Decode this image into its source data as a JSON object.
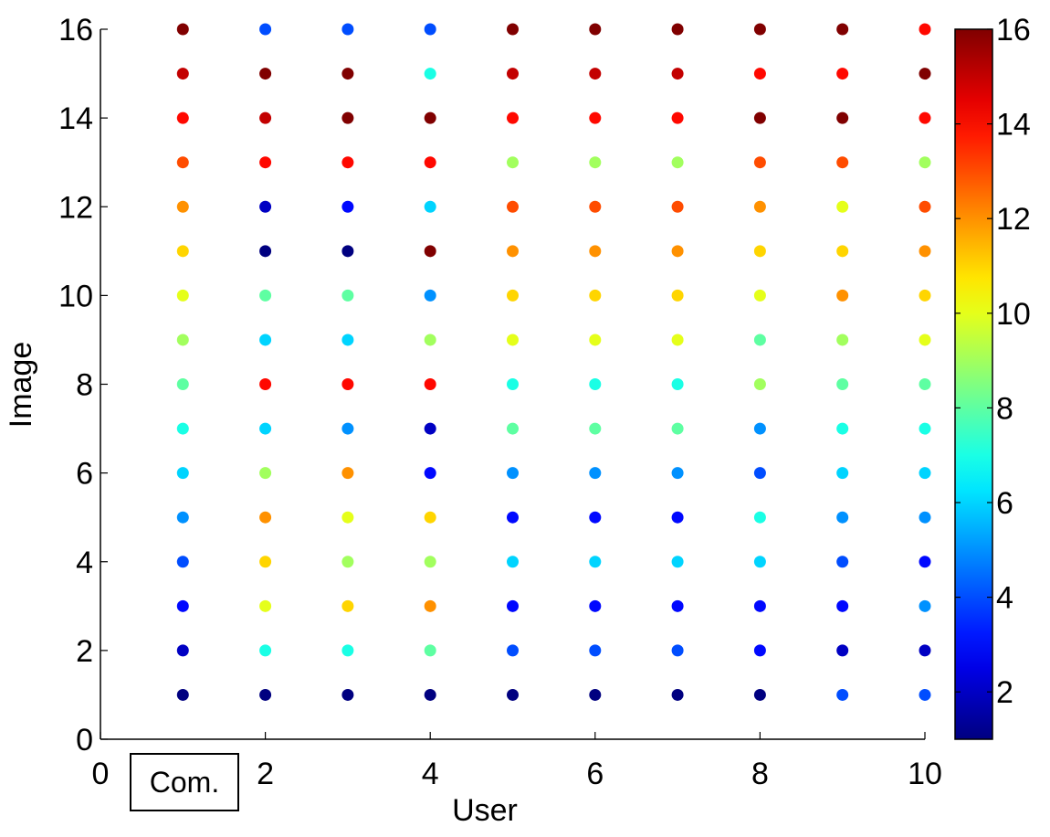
{
  "chart_data": {
    "type": "scatter",
    "title": "",
    "xlabel": "User",
    "ylabel": "Image",
    "xlim": [
      0,
      10
    ],
    "ylim": [
      0,
      16
    ],
    "x_ticks": [
      "0",
      "2",
      "4",
      "6",
      "8",
      "10"
    ],
    "y_ticks": [
      "0",
      "2",
      "4",
      "6",
      "8",
      "10",
      "12",
      "14",
      "16"
    ],
    "colormap": "jet",
    "color_range": [
      1,
      16
    ],
    "colorbar_ticks": [
      "2",
      "4",
      "6",
      "8",
      "10",
      "12",
      "14",
      "16"
    ],
    "grid": false,
    "annotation": "Com.",
    "users": [
      1,
      2,
      3,
      4,
      5,
      6,
      7,
      8,
      9,
      10
    ],
    "images": [
      1,
      2,
      3,
      4,
      5,
      6,
      7,
      8,
      9,
      10,
      11,
      12,
      13,
      14,
      15,
      16
    ],
    "color_values_by_user": [
      [
        1,
        2,
        3,
        4,
        5,
        6,
        7,
        8,
        9,
        10,
        11,
        12,
        13,
        14,
        15,
        16
      ],
      [
        1,
        7,
        10,
        11,
        12,
        9,
        6,
        14,
        6,
        8,
        1,
        2,
        14,
        15,
        16,
        4
      ],
      [
        1,
        7,
        11,
        9,
        10,
        12,
        5,
        14,
        6,
        8,
        1,
        3,
        14,
        16,
        16,
        4
      ],
      [
        1,
        8,
        12,
        9,
        11,
        3,
        2,
        14,
        9,
        5,
        16,
        6,
        14,
        16,
        7,
        4
      ],
      [
        1,
        4,
        3,
        6,
        3,
        5,
        8,
        7,
        10,
        11,
        12,
        13,
        9,
        14,
        15,
        16
      ],
      [
        1,
        4,
        3,
        6,
        3,
        5,
        8,
        7,
        10,
        11,
        12,
        13,
        9,
        14,
        15,
        16
      ],
      [
        1,
        4,
        3,
        6,
        3,
        5,
        8,
        7,
        10,
        11,
        12,
        13,
        9,
        14,
        15,
        16
      ],
      [
        1,
        3,
        3,
        6,
        7,
        4,
        5,
        9,
        8,
        10,
        11,
        12,
        13,
        16,
        14,
        16
      ],
      [
        4,
        2,
        3,
        4,
        5,
        6,
        7,
        8,
        9,
        12,
        11,
        10,
        13,
        16,
        14,
        16
      ],
      [
        4,
        2,
        5,
        3,
        5,
        6,
        7,
        8,
        10,
        11,
        12,
        13,
        9,
        14,
        16,
        14
      ]
    ]
  }
}
